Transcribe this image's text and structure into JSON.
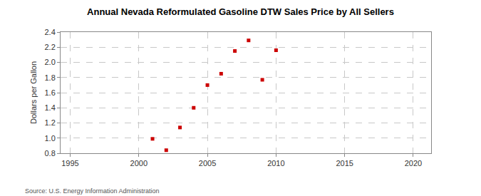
{
  "chart_data": {
    "type": "scatter",
    "title": "Annual Nevada Reformulated Gasoline DTW Sales Price by All Sellers",
    "y_label": "Dollars per Gallon",
    "source": "Source: U.S. Energy Information Administration",
    "x": [
      2001,
      2002,
      2003,
      2004,
      2005,
      2006,
      2007,
      2008,
      2009,
      2010
    ],
    "values": [
      0.99,
      0.84,
      1.14,
      1.4,
      1.7,
      1.85,
      2.15,
      2.29,
      1.77,
      2.16
    ],
    "color": "#cc0000",
    "marker": "square",
    "xlim": [
      1994.3,
      2021.3
    ],
    "xticks": [
      1995,
      2000,
      2005,
      2010,
      2015,
      2020
    ],
    "ylim": [
      0.8,
      2.4
    ],
    "yticks": [
      0.8,
      {
        "value": 1.0,
        "label": "1.0"
      },
      1.2,
      1.4,
      1.6,
      1.8,
      {
        "value": 2.0,
        "label": "2.0"
      },
      2.2,
      2.4
    ],
    "grid": true
  }
}
